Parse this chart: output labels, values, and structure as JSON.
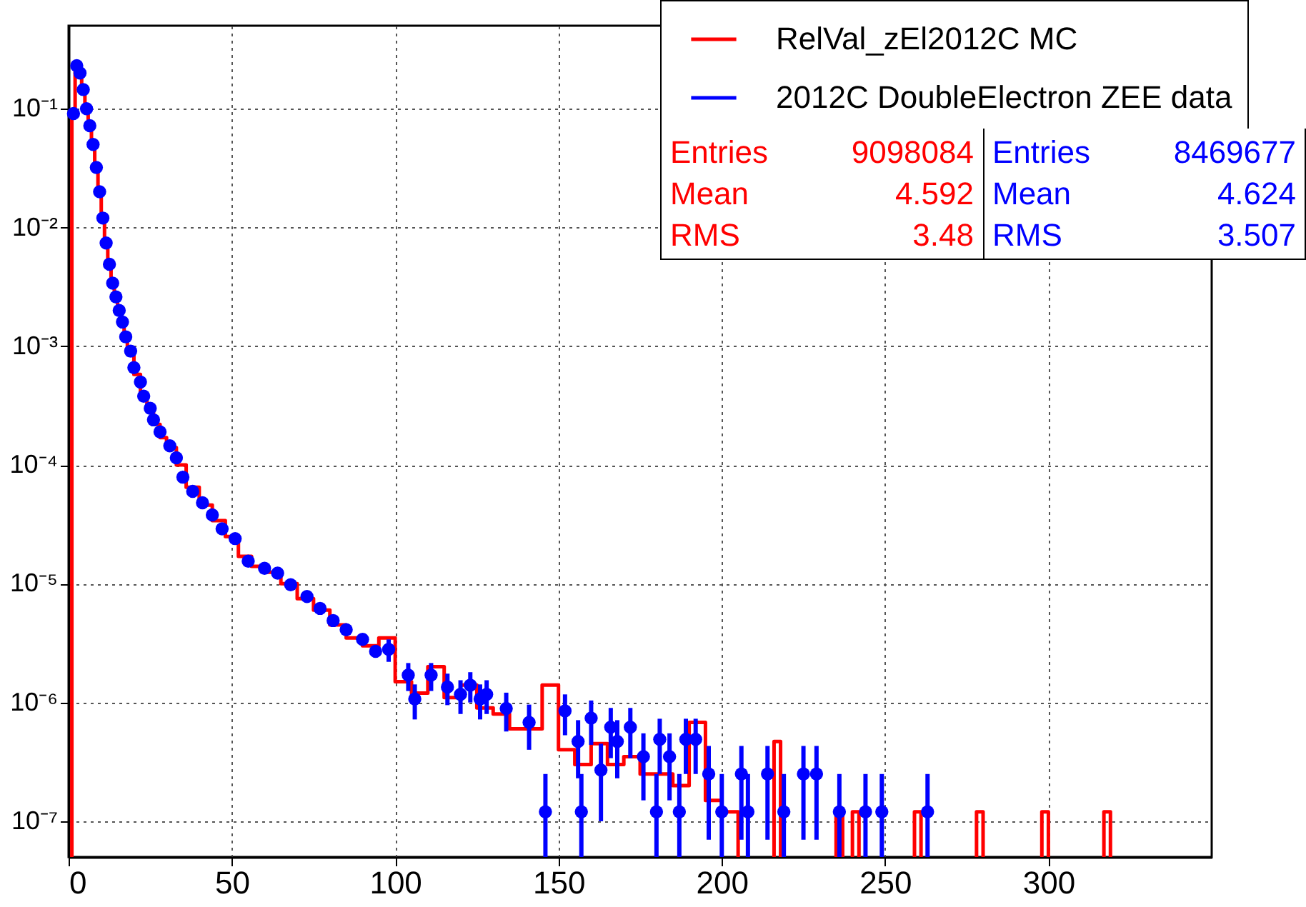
{
  "chart_data": {
    "type": "histogram",
    "xlim": [
      0,
      350
    ],
    "xticks": [
      0,
      50,
      100,
      150,
      200,
      250,
      300
    ],
    "ylim": [
      5e-08,
      0.5
    ],
    "yticks": [
      {
        "value": 1e-07,
        "label": "10⁻⁷"
      },
      {
        "value": 1e-06,
        "label": "10⁻⁶"
      },
      {
        "value": 1e-05,
        "label": "10⁻⁵"
      },
      {
        "value": 0.0001,
        "label": "10⁻⁴"
      },
      {
        "value": 0.001,
        "label": "10⁻³"
      },
      {
        "value": 0.01,
        "label": "10⁻²"
      },
      {
        "value": 0.1,
        "label": "10⁻¹"
      }
    ],
    "log": true,
    "grid": true,
    "legend": "top right",
    "marker": "circle",
    "annotations": [
      "Entries 9098084",
      "Mean 4.592",
      "RMS 3.48",
      "Entries 8469677",
      "Mean 4.624",
      "RMS 3.507"
    ],
    "series": [
      {
        "name": "RelVal_zEl2012C MC",
        "type": "histogram",
        "color": "#ff0000",
        "bins": [
          1,
          2,
          3,
          4,
          5,
          6,
          7,
          8,
          9,
          10,
          11,
          12,
          13,
          14,
          15,
          16,
          17,
          18,
          20,
          22,
          24,
          26,
          28,
          30,
          33,
          36,
          40,
          44,
          48,
          52,
          56,
          60,
          65,
          70,
          75,
          80,
          85,
          90,
          95,
          100,
          105,
          110,
          115,
          120,
          125,
          130,
          135,
          140,
          145,
          150,
          155,
          160,
          165,
          170,
          175,
          180,
          185,
          190,
          195,
          200,
          205,
          216,
          218,
          235,
          237,
          240,
          242,
          259,
          261,
          278,
          280,
          298,
          300,
          317,
          319
        ],
        "values": [
          0.09,
          0.23,
          0.2,
          0.145,
          0.1,
          0.072,
          0.05,
          0.032,
          0.02,
          0.012,
          0.0074,
          0.0049,
          0.0034,
          0.0026,
          0.002,
          0.0016,
          0.0012,
          0.00091,
          0.00058,
          0.0004,
          0.0003,
          0.00022,
          0.00017,
          0.00014,
          0.0001,
          6.5e-05,
          4.6e-05,
          3.4e-05,
          2.5e-05,
          1.7e-05,
          1.4e-05,
          1.25e-05,
          1e-05,
          7.5e-06,
          6e-06,
          4.5e-06,
          3.5e-06,
          3e-06,
          3.5e-06,
          1.5e-06,
          1.2e-06,
          2e-06,
          1.1e-06,
          1.4e-06,
          9e-07,
          8e-07,
          6e-07,
          6e-07,
          1.4e-06,
          4e-07,
          3e-07,
          4.5e-07,
          3e-07,
          3.5e-07,
          2.5e-07,
          2.5e-07,
          2e-07,
          6.8e-07,
          1.5e-07,
          1.2e-07,
          null,
          4.7e-07,
          null,
          1.2e-07,
          null,
          1.2e-07,
          null,
          1.2e-07,
          null,
          1.2e-07,
          null,
          1.2e-07,
          null,
          1.2e-07
        ]
      },
      {
        "name": "2012C DoubleElectron ZEE data",
        "type": "scatter",
        "color": "#0000ff",
        "x": [
          1.5,
          2.5,
          3.5,
          4.5,
          5.5,
          6.5,
          7.5,
          8.5,
          9.5,
          10.5,
          11.5,
          12.5,
          13.5,
          14.5,
          15.5,
          16.5,
          17.5,
          19,
          20,
          22,
          23,
          25,
          26,
          28,
          31,
          33,
          35,
          38,
          41,
          44,
          47,
          51,
          55,
          60,
          64,
          68,
          73,
          77,
          81,
          85,
          90,
          94,
          98,
          104,
          106,
          111,
          116,
          120,
          123,
          126,
          128,
          134,
          141,
          146,
          152,
          156,
          157,
          160,
          163,
          166,
          168,
          172,
          176,
          180,
          181,
          184,
          187,
          189,
          192,
          196,
          200,
          206,
          208,
          214,
          219,
          225,
          229,
          236,
          244,
          249,
          263
        ],
        "values": [
          0.091,
          0.23,
          0.2,
          0.145,
          0.1,
          0.072,
          0.05,
          0.032,
          0.02,
          0.012,
          0.0074,
          0.0049,
          0.0034,
          0.0026,
          0.002,
          0.0016,
          0.0012,
          0.00091,
          0.00066,
          0.0005,
          0.00038,
          0.0003,
          0.00024,
          0.00019,
          0.000145,
          0.000115,
          7.9e-05,
          6e-05,
          4.8e-05,
          3.8e-05,
          2.9e-05,
          2.4e-05,
          1.55e-05,
          1.35e-05,
          1.23e-05,
          9.8e-06,
          7.8e-06,
          6.2e-06,
          4.9e-06,
          4.1e-06,
          3.4e-06,
          2.7e-06,
          2.8e-06,
          1.7e-06,
          1.07e-06,
          1.7e-06,
          1.35e-06,
          1.17e-06,
          1.4e-06,
          1.07e-06,
          1.17e-06,
          8.9e-07,
          6.8e-07,
          1.2e-07,
          8.5e-07,
          4.7e-07,
          1.2e-07,
          7.4e-07,
          2.7e-07,
          6.2e-07,
          4.7e-07,
          6.2e-07,
          3.5e-07,
          1.2e-07,
          4.9e-07,
          3.5e-07,
          1.2e-07,
          4.9e-07,
          4.9e-07,
          2.5e-07,
          1.2e-07,
          2.5e-07,
          1.2e-07,
          2.5e-07,
          1.2e-07,
          2.5e-07,
          2.5e-07,
          1.2e-07,
          1.2e-07,
          1.2e-07,
          1.2e-07
        ],
        "errors": [
          null,
          null,
          null,
          null,
          null,
          null,
          null,
          null,
          null,
          null,
          null,
          null,
          null,
          null,
          null,
          null,
          null,
          null,
          null,
          null,
          null,
          null,
          null,
          null,
          null,
          null,
          null,
          null,
          null,
          null,
          null,
          null,
          null,
          null,
          null,
          null,
          null,
          null,
          null,
          null,
          null,
          null,
          6e-07,
          4.5e-07,
          3.5e-07,
          4.5e-07,
          4e-07,
          3.7e-07,
          4e-07,
          3.5e-07,
          3.7e-07,
          3.2e-07,
          2.8e-07,
          [
            5e-08,
            2.5e-07
          ],
          3.2e-07,
          2.4e-07,
          [
            5e-08,
            2.5e-07
          ],
          3e-07,
          [
            1e-07,
            4.5e-07
          ],
          2.8e-07,
          2.4e-07,
          2.8e-07,
          2e-07,
          [
            5e-08,
            2.5e-07
          ],
          2.4e-07,
          2e-07,
          [
            5e-08,
            2.5e-07
          ],
          2.4e-07,
          2.4e-07,
          [
            7e-08,
            4.3e-07
          ],
          [
            5e-08,
            2.5e-07
          ],
          [
            7e-08,
            4.3e-07
          ],
          [
            5e-08,
            2.5e-07
          ],
          [
            7e-08,
            4.3e-07
          ],
          [
            5e-08,
            2.5e-07
          ],
          [
            7e-08,
            4.3e-07
          ],
          [
            7e-08,
            4.3e-07
          ],
          [
            5e-08,
            2.5e-07
          ],
          [
            5e-08,
            2.5e-07
          ],
          [
            5e-08,
            2.5e-07
          ],
          [
            5e-08,
            2.5e-07
          ]
        ]
      }
    ]
  }
}
